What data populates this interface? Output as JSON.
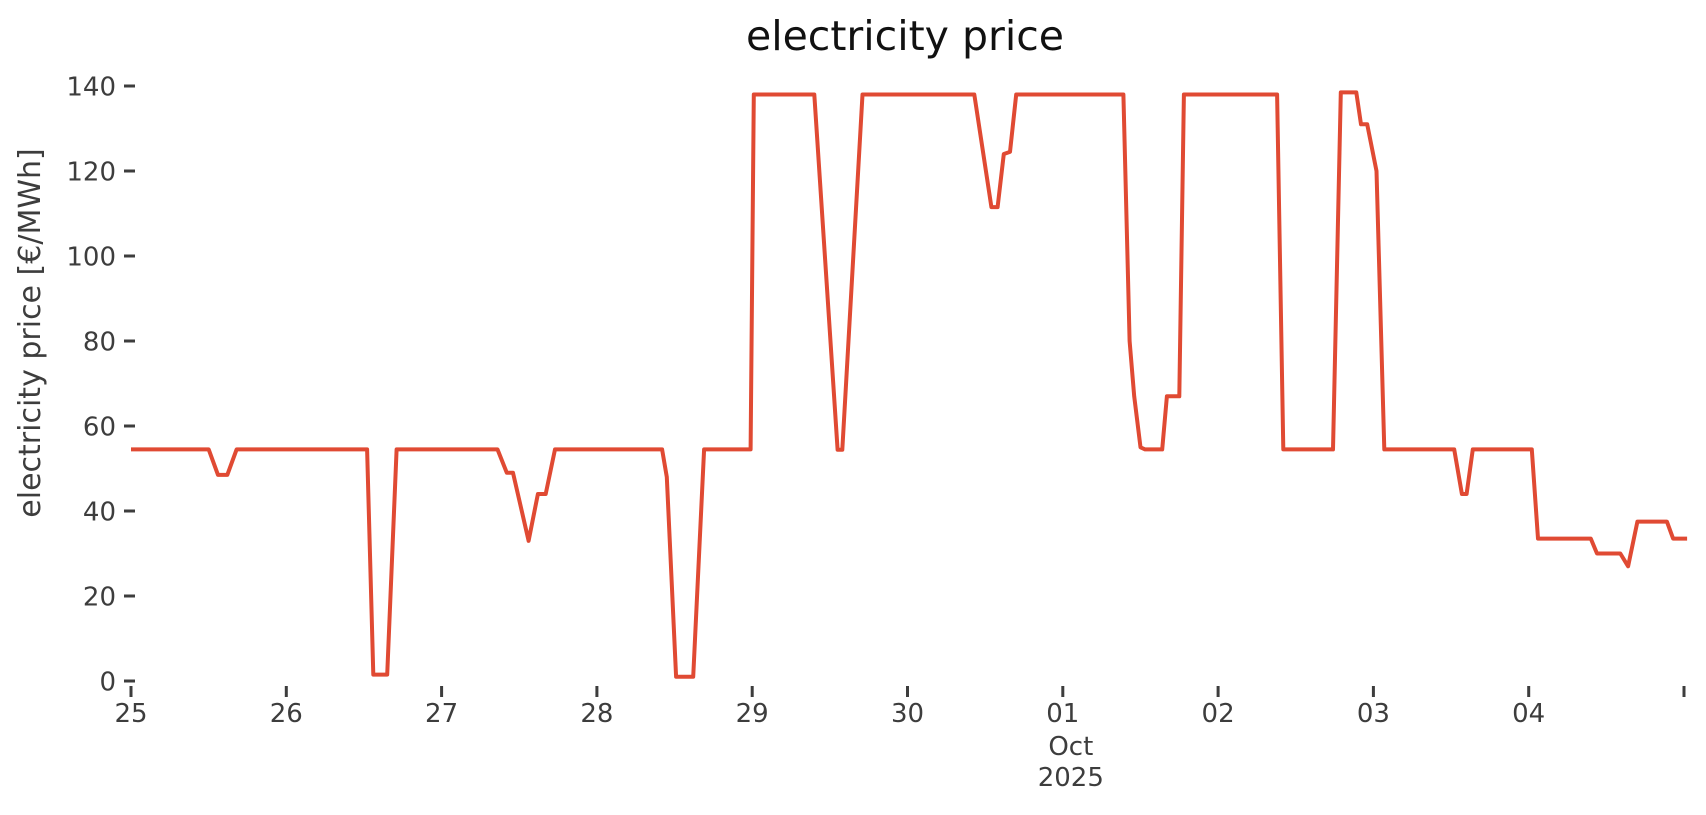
{
  "title": "electricity price",
  "colors": {
    "line": "#e04a33",
    "tick_color": "#3d3d3d",
    "title_color": "#111111",
    "background": "#ffffff"
  },
  "chart_data": {
    "type": "line",
    "title": "electricity price",
    "xlabel": "",
    "ylabel": "electricity price [€/MWh]",
    "x_start_date": "2025-09-25",
    "x_end_date": "2025-10-05",
    "ylim": [
      0,
      140
    ],
    "grid": false,
    "legend_position": "none",
    "line_color": "#e04a33",
    "y_ticks": [
      {
        "value": 0,
        "label": "0"
      },
      {
        "value": 20,
        "label": "20"
      },
      {
        "value": 40,
        "label": "40"
      },
      {
        "value": 60,
        "label": "60"
      },
      {
        "value": 80,
        "label": "80"
      },
      {
        "value": 100,
        "label": "100"
      },
      {
        "value": 120,
        "label": "120"
      },
      {
        "value": 140,
        "label": "140"
      }
    ],
    "x_ticks": [
      {
        "pos": 25,
        "label": "25"
      },
      {
        "pos": 26,
        "label": "26"
      },
      {
        "pos": 27,
        "label": "27"
      },
      {
        "pos": 28,
        "label": "28"
      },
      {
        "pos": 29,
        "label": "29"
      },
      {
        "pos": 30,
        "label": "30"
      },
      {
        "pos": 31,
        "label": "01"
      },
      {
        "pos": 32,
        "label": "02"
      },
      {
        "pos": 33,
        "label": "03"
      },
      {
        "pos": 34,
        "label": "04"
      },
      {
        "pos": 35,
        "label": ""
      }
    ],
    "x_secondary_labels": [
      {
        "pos": 31,
        "month": "Oct",
        "year": "2025"
      }
    ],
    "series": [
      {
        "name": "electricity price",
        "unit": "EUR/MWh",
        "points_day_value": [
          [
            25.0,
            54.5
          ],
          [
            25.5,
            54.5
          ],
          [
            25.56,
            48.5
          ],
          [
            25.62,
            48.5
          ],
          [
            25.68,
            54.5
          ],
          [
            26.52,
            54.5
          ],
          [
            26.56,
            1.5
          ],
          [
            26.65,
            1.5
          ],
          [
            26.71,
            54.5
          ],
          [
            27.36,
            54.5
          ],
          [
            27.42,
            49
          ],
          [
            27.46,
            49
          ],
          [
            27.56,
            33
          ],
          [
            27.62,
            44
          ],
          [
            27.67,
            44
          ],
          [
            27.73,
            54.5
          ],
          [
            28.42,
            54.5
          ],
          [
            28.45,
            48
          ],
          [
            28.51,
            1
          ],
          [
            28.62,
            1
          ],
          [
            28.69,
            54.5
          ],
          [
            28.99,
            54.5
          ],
          [
            29.01,
            138
          ],
          [
            29.4,
            138
          ],
          [
            29.55,
            54.4
          ],
          [
            29.58,
            54.4
          ],
          [
            29.71,
            138
          ],
          [
            30.43,
            138
          ],
          [
            30.54,
            111.5
          ],
          [
            30.58,
            111.5
          ],
          [
            30.62,
            124
          ],
          [
            30.66,
            124.5
          ],
          [
            30.7,
            138
          ],
          [
            31.39,
            138
          ],
          [
            31.43,
            80
          ],
          [
            31.46,
            67
          ],
          [
            31.5,
            55
          ],
          [
            31.53,
            54.5
          ],
          [
            31.64,
            54.5
          ],
          [
            31.67,
            67
          ],
          [
            31.75,
            67
          ],
          [
            31.78,
            138
          ],
          [
            32.38,
            138
          ],
          [
            32.42,
            54.5
          ],
          [
            32.74,
            54.5
          ],
          [
            32.79,
            138.5
          ],
          [
            32.89,
            138.5
          ],
          [
            32.92,
            131
          ],
          [
            32.96,
            131
          ],
          [
            33.02,
            120
          ],
          [
            33.07,
            54.5
          ],
          [
            33.52,
            54.5
          ],
          [
            33.57,
            44
          ],
          [
            33.6,
            44
          ],
          [
            33.64,
            54.5
          ],
          [
            34.02,
            54.5
          ],
          [
            34.06,
            33.5
          ],
          [
            34.4,
            33.5
          ],
          [
            34.44,
            30
          ],
          [
            34.59,
            30
          ],
          [
            34.64,
            27
          ],
          [
            34.7,
            37.5
          ],
          [
            34.89,
            37.5
          ],
          [
            34.93,
            33.5
          ],
          [
            35.02,
            33.5
          ]
        ]
      }
    ]
  }
}
